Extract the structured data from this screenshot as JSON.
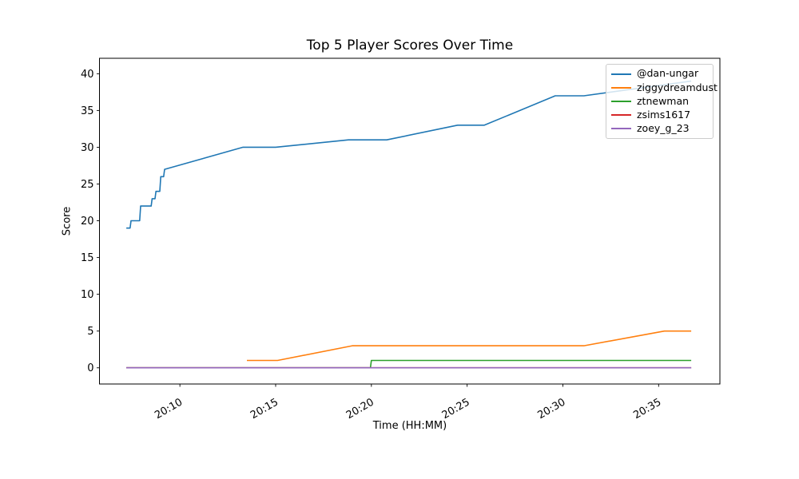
{
  "chart_data": {
    "type": "line",
    "title": "Top 5 Player Scores Over Time",
    "xlabel": "Time (HH:MM)",
    "ylabel": "Score",
    "x_unit": "minutes after 20:00",
    "xlim": [
      5.8,
      38.2
    ],
    "ylim": [
      -2.2,
      42.1
    ],
    "grid": false,
    "legend_position": "upper right",
    "x_ticks": [
      {
        "value": 10,
        "label": "20:10"
      },
      {
        "value": 15,
        "label": "20:15"
      },
      {
        "value": 20,
        "label": "20:20"
      },
      {
        "value": 25,
        "label": "20:25"
      },
      {
        "value": 30,
        "label": "20:30"
      },
      {
        "value": 35,
        "label": "20:35"
      }
    ],
    "x_tick_rotation_deg": 30,
    "y_ticks": [
      0,
      5,
      10,
      15,
      20,
      25,
      30,
      35,
      40
    ],
    "series": [
      {
        "name": "@dan-ungar",
        "color": "#1f77b4",
        "points": [
          [
            7.2,
            19
          ],
          [
            7.4,
            19
          ],
          [
            7.45,
            20
          ],
          [
            7.9,
            20
          ],
          [
            7.95,
            22
          ],
          [
            8.5,
            22
          ],
          [
            8.55,
            23
          ],
          [
            8.7,
            23
          ],
          [
            8.75,
            24
          ],
          [
            8.95,
            24
          ],
          [
            9.0,
            26
          ],
          [
            9.15,
            26
          ],
          [
            9.2,
            27
          ],
          [
            13.3,
            30
          ],
          [
            15.0,
            30
          ],
          [
            18.8,
            31
          ],
          [
            20.8,
            31
          ],
          [
            24.5,
            33
          ],
          [
            25.9,
            33
          ],
          [
            29.6,
            37
          ],
          [
            31.1,
            37
          ],
          [
            36.7,
            39
          ]
        ]
      },
      {
        "name": "ziggydreamdust",
        "color": "#ff7f0e",
        "points": [
          [
            13.5,
            1
          ],
          [
            15.1,
            1
          ],
          [
            19.0,
            3
          ],
          [
            31.1,
            3
          ],
          [
            35.3,
            5
          ],
          [
            36.7,
            5
          ]
        ]
      },
      {
        "name": "ztnewman",
        "color": "#2ca02c",
        "points": [
          [
            7.2,
            0
          ],
          [
            19.95,
            0
          ],
          [
            20.0,
            1
          ],
          [
            36.7,
            1
          ]
        ]
      },
      {
        "name": "zsims1617",
        "color": "#d62728",
        "points": [
          [
            7.2,
            0
          ],
          [
            36.7,
            0
          ]
        ]
      },
      {
        "name": "zoey_g_23",
        "color": "#9467bd",
        "points": [
          [
            7.2,
            0
          ],
          [
            36.7,
            0
          ]
        ]
      }
    ]
  }
}
